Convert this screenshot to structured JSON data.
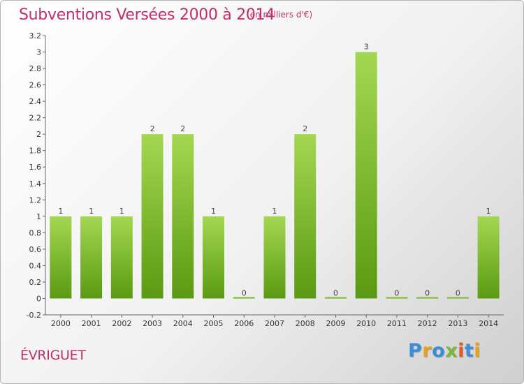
{
  "chart_data": {
    "type": "bar",
    "title": "Subventions Versées 2000 à 2014",
    "subtitle": "(en milliers d'€)",
    "categories": [
      "2000",
      "2001",
      "2002",
      "2003",
      "2004",
      "2005",
      "2006",
      "2007",
      "2008",
      "2009",
      "2010",
      "2011",
      "2012",
      "2013",
      "2014"
    ],
    "values": [
      1,
      1,
      1,
      2,
      2,
      1,
      0,
      1,
      2,
      0,
      3,
      0,
      0,
      0,
      1
    ],
    "data_labels": [
      "1",
      "1",
      "1",
      "2",
      "2",
      "1",
      "0",
      "1",
      "2",
      "0",
      "3",
      "0",
      "0",
      "0",
      "1"
    ],
    "ylim": [
      -0.2,
      3.2
    ],
    "yticks": [
      -0.2,
      0,
      0.2,
      0.4,
      0.6,
      0.8,
      1,
      1.2,
      1.4,
      1.6,
      1.8,
      2,
      2.2,
      2.4,
      2.6,
      2.8,
      3,
      3.2
    ],
    "ytick_labels": [
      "-0.2",
      "0",
      "0.2",
      "0.4",
      "0.6",
      "0.8",
      "1",
      "1.2",
      "1.4",
      "1.6",
      "1.8",
      "2",
      "2.2",
      "2.4",
      "2.6",
      "2.8",
      "3",
      "3.2"
    ],
    "xlabel": "",
    "ylabel": "",
    "grid": false,
    "bar_color": "#7cbf2e",
    "bar_color_light": "#a4d752",
    "bar_color_dark": "#5a9a12"
  },
  "commune": "ÉVRIGUET",
  "logo": {
    "text": "Proxiti",
    "letters": [
      {
        "ch": "P",
        "color": "#3a8fd6"
      },
      {
        "ch": "r",
        "color": "#e8a21a"
      },
      {
        "ch": "o",
        "color": "#3a8fd6"
      },
      {
        "ch": "x",
        "color": "#7ab83a"
      },
      {
        "ch": "i",
        "color": "#e05a2a"
      },
      {
        "ch": "t",
        "color": "#3a8fd6"
      },
      {
        "ch": "i",
        "color": "#e8a21a"
      }
    ]
  }
}
